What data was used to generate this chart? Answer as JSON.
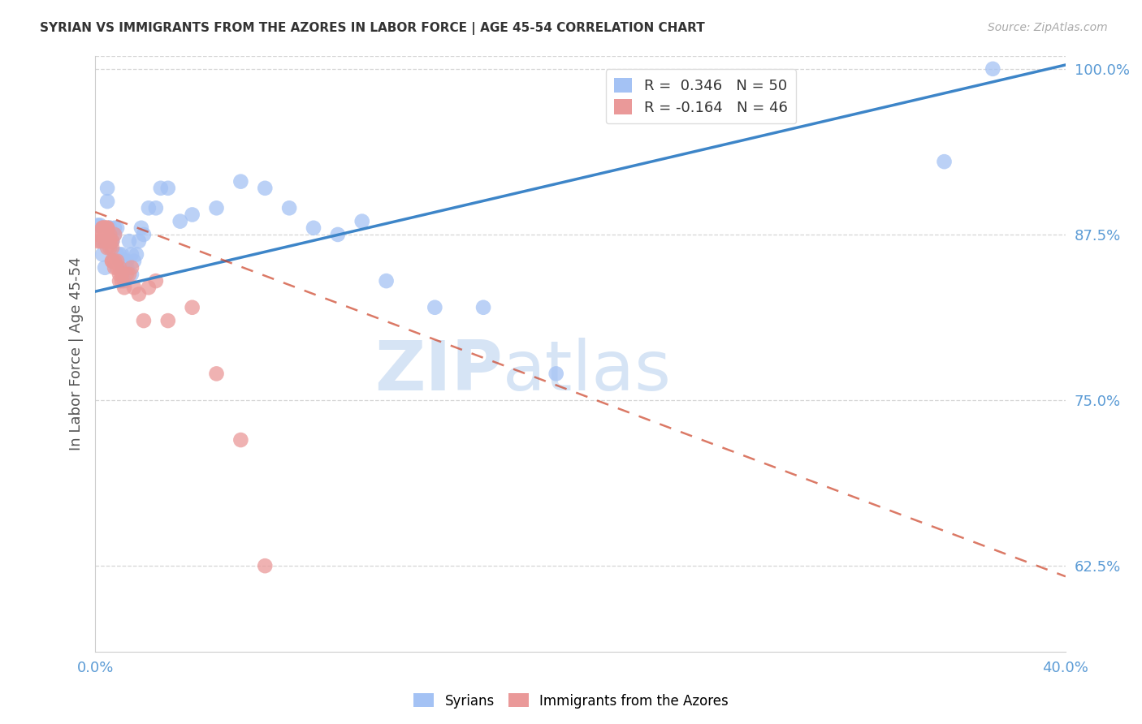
{
  "title": "SYRIAN VS IMMIGRANTS FROM THE AZORES IN LABOR FORCE | AGE 45-54 CORRELATION CHART",
  "source": "Source: ZipAtlas.com",
  "ylabel": "In Labor Force | Age 45-54",
  "xlim": [
    0.0,
    0.4
  ],
  "ylim": [
    0.56,
    1.01
  ],
  "xticks": [
    0.0,
    0.4
  ],
  "xticklabels": [
    "0.0%",
    "40.0%"
  ],
  "ytick_positions": [
    0.625,
    0.75,
    0.875,
    1.0
  ],
  "ytick_labels": [
    "62.5%",
    "75.0%",
    "87.5%",
    "100.0%"
  ],
  "blue_color": "#a4c2f4",
  "pink_color": "#ea9999",
  "blue_line_color": "#3d85c8",
  "pink_line_color": "#cc4125",
  "legend_R_blue": "0.346",
  "legend_N_blue": "50",
  "legend_R_pink": "-0.164",
  "legend_N_pink": "46",
  "watermark_zip": "ZIP",
  "watermark_atlas": "atlas",
  "watermark_color": "#d6e4f5",
  "background_color": "#ffffff",
  "grid_color": "#cccccc",
  "axis_color": "#5b9bd5",
  "title_color": "#333333",
  "blue_line_y0": 0.832,
  "blue_line_y1": 1.003,
  "pink_line_y0": 0.892,
  "pink_line_y1": 0.617,
  "blue_scatter_x": [
    0.001,
    0.002,
    0.003,
    0.003,
    0.004,
    0.005,
    0.005,
    0.006,
    0.006,
    0.007,
    0.007,
    0.008,
    0.008,
    0.009,
    0.009,
    0.01,
    0.01,
    0.011,
    0.011,
    0.012,
    0.012,
    0.013,
    0.013,
    0.014,
    0.015,
    0.015,
    0.016,
    0.017,
    0.018,
    0.019,
    0.02,
    0.022,
    0.025,
    0.027,
    0.03,
    0.035,
    0.04,
    0.05,
    0.06,
    0.07,
    0.08,
    0.09,
    0.1,
    0.11,
    0.12,
    0.14,
    0.16,
    0.19,
    0.35,
    0.37
  ],
  "blue_scatter_y": [
    0.882,
    0.882,
    0.87,
    0.86,
    0.85,
    0.9,
    0.91,
    0.88,
    0.88,
    0.87,
    0.87,
    0.88,
    0.875,
    0.88,
    0.86,
    0.86,
    0.855,
    0.85,
    0.86,
    0.84,
    0.855,
    0.855,
    0.85,
    0.87,
    0.845,
    0.86,
    0.855,
    0.86,
    0.87,
    0.88,
    0.875,
    0.895,
    0.895,
    0.91,
    0.91,
    0.885,
    0.89,
    0.895,
    0.915,
    0.91,
    0.895,
    0.88,
    0.875,
    0.885,
    0.84,
    0.82,
    0.82,
    0.77,
    0.93,
    1.0
  ],
  "pink_scatter_x": [
    0.001,
    0.001,
    0.002,
    0.003,
    0.003,
    0.003,
    0.004,
    0.004,
    0.004,
    0.005,
    0.005,
    0.005,
    0.005,
    0.005,
    0.006,
    0.006,
    0.006,
    0.006,
    0.007,
    0.007,
    0.007,
    0.007,
    0.008,
    0.008,
    0.008,
    0.009,
    0.009,
    0.01,
    0.01,
    0.01,
    0.011,
    0.011,
    0.012,
    0.013,
    0.014,
    0.015,
    0.016,
    0.018,
    0.02,
    0.022,
    0.025,
    0.03,
    0.04,
    0.05,
    0.06,
    0.07
  ],
  "pink_scatter_y": [
    0.875,
    0.87,
    0.87,
    0.88,
    0.88,
    0.875,
    0.88,
    0.87,
    0.88,
    0.88,
    0.88,
    0.87,
    0.875,
    0.865,
    0.875,
    0.87,
    0.865,
    0.87,
    0.865,
    0.855,
    0.87,
    0.855,
    0.875,
    0.855,
    0.85,
    0.855,
    0.85,
    0.85,
    0.84,
    0.845,
    0.845,
    0.84,
    0.835,
    0.845,
    0.845,
    0.85,
    0.835,
    0.83,
    0.81,
    0.835,
    0.84,
    0.81,
    0.82,
    0.77,
    0.72,
    0.625
  ]
}
